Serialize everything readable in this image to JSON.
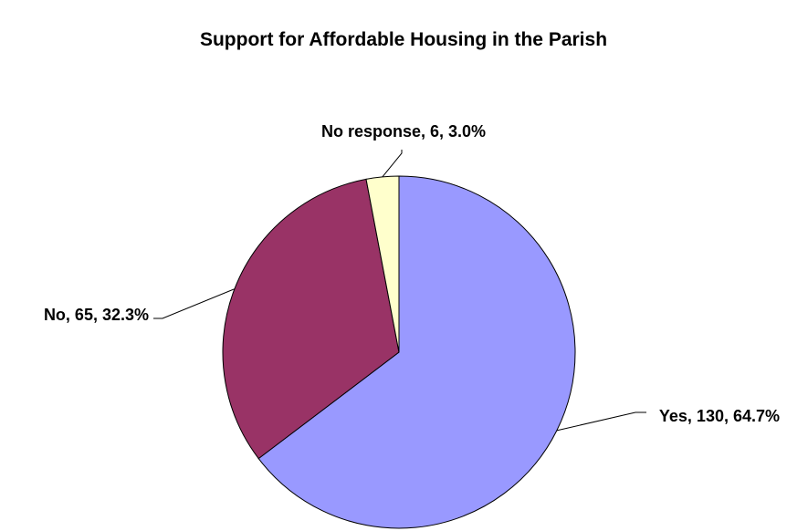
{
  "chart_data": {
    "type": "pie",
    "title": "Support for Affordable Housing in the Parish",
    "slices": [
      {
        "category": "Yes",
        "value": 130,
        "percent": "64.7%",
        "label": "Yes, 130, 64.7%",
        "color": "#9999FF"
      },
      {
        "category": "No",
        "value": 65,
        "percent": "32.3%",
        "label": "No, 65, 32.3%",
        "color": "#993366"
      },
      {
        "category": "No response",
        "value": 6,
        "percent": "3.0%",
        "label": "No response, 6, 3.0%",
        "color": "#FFFFCC"
      }
    ],
    "legend": false
  }
}
